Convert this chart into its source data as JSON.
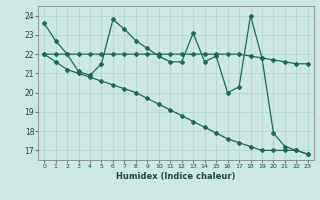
{
  "xlabel": "Humidex (Indice chaleur)",
  "background_color": "#cde8e4",
  "grid_color": "#b0d8d0",
  "line_color": "#1a6a5a",
  "xlim": [
    -0.5,
    23.5
  ],
  "ylim": [
    16.5,
    24.5
  ],
  "yticks": [
    17,
    18,
    19,
    20,
    21,
    22,
    23,
    24
  ],
  "xticks": [
    0,
    1,
    2,
    3,
    4,
    5,
    6,
    7,
    8,
    9,
    10,
    11,
    12,
    13,
    14,
    15,
    16,
    17,
    18,
    19,
    20,
    21,
    22,
    23
  ],
  "xtick_labels": [
    "0",
    "1",
    "2",
    "3",
    "4",
    "5",
    "6",
    "7",
    "8",
    "9",
    "10",
    "11",
    "12",
    "13",
    "14",
    "15",
    "16",
    "17",
    "18",
    "19",
    "20",
    "21",
    "22",
    "23"
  ],
  "series": [
    {
      "x": [
        0,
        1,
        2,
        3,
        4,
        5,
        6,
        7,
        8,
        9,
        10,
        11,
        12,
        13,
        14,
        15,
        16,
        17,
        18,
        19,
        20,
        21,
        22,
        23
      ],
      "y": [
        23.6,
        22.7,
        22.0,
        21.1,
        20.9,
        21.5,
        23.8,
        23.3,
        22.7,
        22.3,
        21.9,
        21.6,
        21.6,
        23.1,
        21.6,
        21.9,
        20.0,
        20.3,
        24.0,
        21.8,
        17.9,
        17.2,
        17.0,
        16.8
      ]
    },
    {
      "x": [
        0,
        1,
        2,
        3,
        4,
        5,
        6,
        7,
        8,
        9,
        10,
        11,
        12,
        13,
        14,
        15,
        16,
        17,
        18,
        19,
        20,
        21,
        22,
        23
      ],
      "y": [
        22.0,
        22.0,
        22.0,
        22.0,
        22.0,
        22.0,
        22.0,
        22.0,
        22.0,
        22.0,
        22.0,
        22.0,
        22.0,
        22.0,
        22.0,
        22.0,
        22.0,
        22.0,
        21.9,
        21.8,
        21.7,
        21.6,
        21.5,
        21.5
      ]
    },
    {
      "x": [
        0,
        1,
        2,
        3,
        4,
        5,
        6,
        7,
        8,
        9,
        10,
        11,
        12,
        13,
        14,
        15,
        16,
        17,
        18,
        19,
        20,
        21,
        22,
        23
      ],
      "y": [
        22.0,
        21.6,
        21.2,
        21.0,
        20.8,
        20.6,
        20.4,
        20.2,
        20.0,
        19.7,
        19.4,
        19.1,
        18.8,
        18.5,
        18.2,
        17.9,
        17.6,
        17.4,
        17.2,
        17.0,
        17.0,
        17.0,
        17.0,
        16.8
      ]
    }
  ]
}
